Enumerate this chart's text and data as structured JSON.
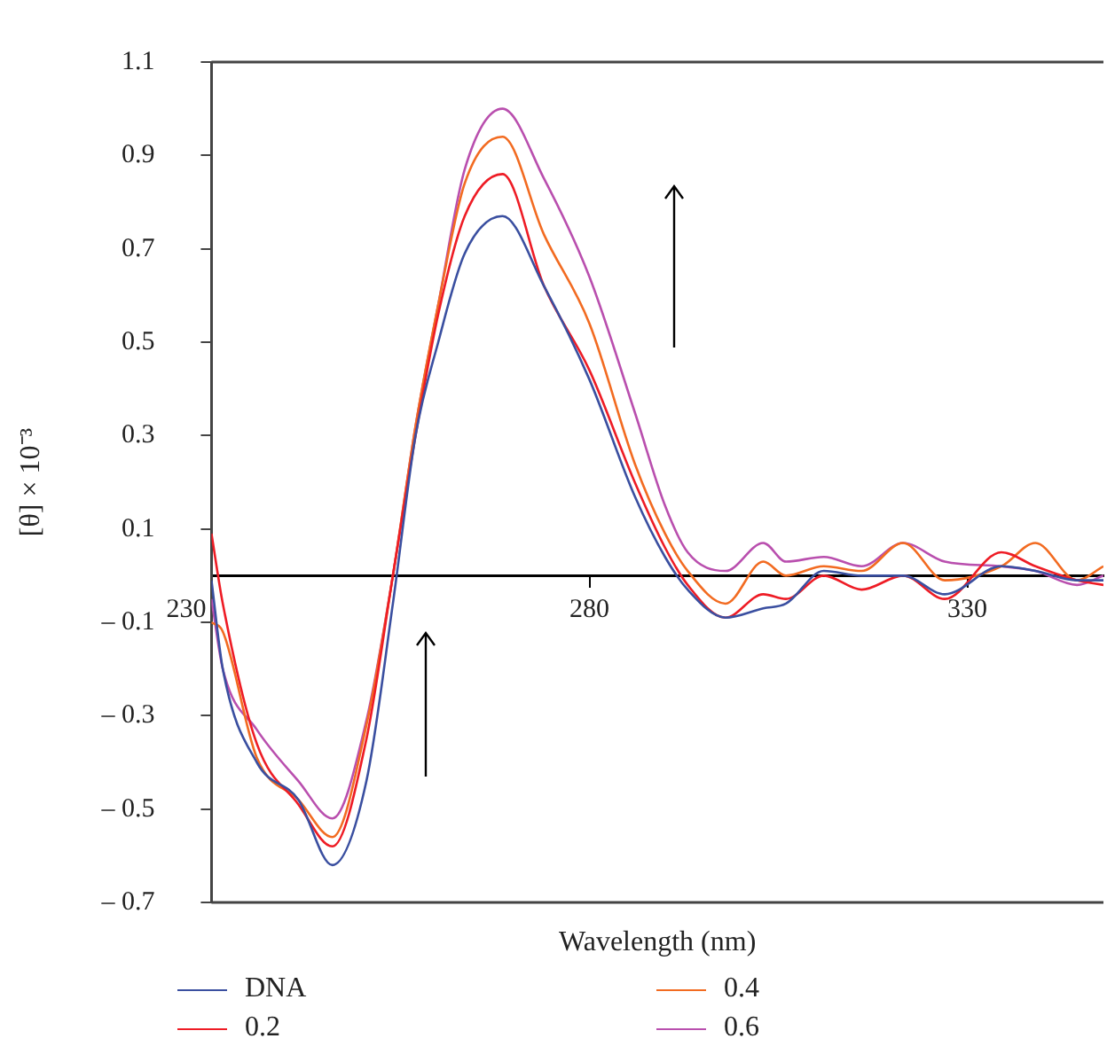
{
  "chart_data": {
    "type": "line",
    "xlabel": "Wavelength (nm)",
    "ylabel": "[θ] × 10⁻³",
    "x": [
      230,
      231.5,
      236,
      241.5,
      246,
      250.5,
      254,
      257,
      260,
      263.5,
      268.5,
      274,
      280,
      286,
      290,
      293,
      298,
      303,
      306,
      311,
      316,
      321.5,
      327,
      334.5,
      339,
      344.5,
      348
    ],
    "xlim": [
      230,
      348
    ],
    "xticks": [
      230,
      280,
      330
    ],
    "ylim": [
      -0.7,
      1.1
    ],
    "yticks": [
      {
        "value": -0.7,
        "label": "– 0.7"
      },
      {
        "value": -0.5,
        "label": "– 0.5"
      },
      {
        "value": -0.3,
        "label": "– 0.3"
      },
      {
        "value": -0.1,
        "label": "– 0.1"
      },
      0.1,
      0.3,
      0.5,
      0.7,
      0.9,
      1.1
    ],
    "grid": false,
    "legend": "bottom",
    "marker": "none",
    "line_style": "solid",
    "series": [
      {
        "name": "DNA",
        "color": "#3a4fa0",
        "values": [
          -0.01,
          -0.2,
          -0.4,
          -0.48,
          -0.62,
          -0.44,
          -0.06,
          0.3,
          0.5,
          0.69,
          0.77,
          0.62,
          0.42,
          0.17,
          0.04,
          -0.03,
          -0.09,
          -0.07,
          -0.06,
          0.01,
          0,
          0,
          -0.04,
          0.02,
          0.01,
          -0.01,
          -0.01
        ]
      },
      {
        "name": "0.2",
        "color": "#ee1c25",
        "values": [
          0.09,
          -0.06,
          -0.36,
          -0.49,
          -0.58,
          -0.35,
          0,
          0.3,
          0.56,
          0.77,
          0.86,
          0.62,
          0.44,
          0.2,
          0.06,
          -0.02,
          -0.09,
          -0.04,
          -0.05,
          0,
          -0.03,
          0,
          -0.05,
          0.05,
          0.02,
          -0.01,
          -0.02
        ]
      },
      {
        "name": "0.4",
        "color": "#f26b21",
        "values": [
          -0.1,
          -0.12,
          -0.39,
          -0.48,
          -0.56,
          -0.32,
          0,
          0.32,
          0.58,
          0.84,
          0.94,
          0.73,
          0.54,
          0.24,
          0.09,
          0.01,
          -0.06,
          0.03,
          0,
          0.02,
          0.01,
          0.07,
          -0.01,
          0.02,
          0.07,
          -0.01,
          0.02
        ]
      },
      {
        "name": "0.6",
        "color": "#b94fae",
        "values": [
          -0.05,
          -0.2,
          -0.33,
          -0.44,
          -0.52,
          -0.31,
          0,
          0.32,
          0.58,
          0.87,
          1.0,
          0.85,
          0.64,
          0.35,
          0.15,
          0.05,
          0.01,
          0.07,
          0.03,
          0.04,
          0.02,
          0.07,
          0.03,
          0.02,
          0.01,
          -0.02,
          0
        ]
      }
    ]
  }
}
